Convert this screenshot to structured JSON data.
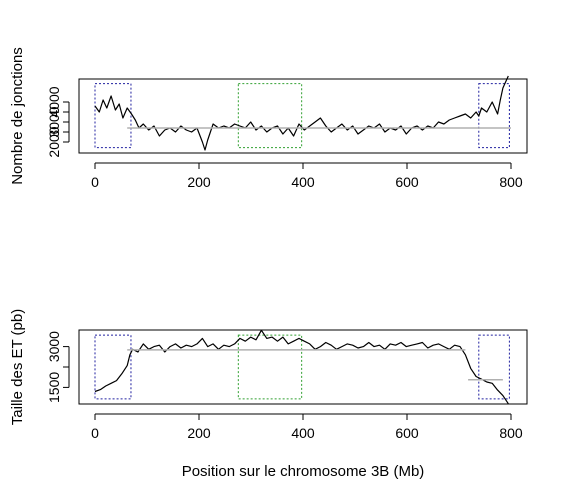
{
  "figure": {
    "xlabel": "Position sur le chromosome 3B (Mb)"
  },
  "colors": {
    "frame": "#000000",
    "signal": "#000000",
    "mean": "#b0b0b0",
    "box_blue": "#2020a0",
    "box_green": "#30a030"
  },
  "chart_data": [
    {
      "type": "line",
      "title": "",
      "xlabel": "",
      "ylabel": "Nombre de jonctions",
      "xlim": [
        0,
        775
      ],
      "ylim": [
        1600,
        5000
      ],
      "xticks": [
        0,
        200,
        400,
        600,
        800
      ],
      "yticks": [
        2000,
        3000,
        4000
      ],
      "ytick_labels": [
        "2000",
        "3000",
        "4000"
      ],
      "grid": false,
      "series": [
        {
          "x": [
            0,
            8,
            15,
            22,
            30,
            38,
            45,
            52,
            60,
            68,
            75,
            82,
            90,
            100,
            110,
            120,
            130,
            140,
            150,
            160,
            170,
            180,
            190,
            200,
            205,
            210,
            215,
            220,
            230,
            240,
            250,
            260,
            270,
            280,
            290,
            300,
            310,
            320,
            330,
            340,
            350,
            360,
            370,
            380,
            390,
            400,
            410,
            420,
            430,
            440,
            450,
            460,
            470,
            480,
            490,
            500,
            510,
            520,
            530,
            540,
            550,
            560,
            570,
            580,
            590,
            600,
            610,
            620,
            630,
            640,
            650,
            660,
            670,
            680,
            690,
            700,
            710,
            715,
            720,
            730,
            740,
            750,
            755,
            760,
            765,
            770
          ],
          "y": [
            3800,
            3500,
            4100,
            3700,
            4300,
            3600,
            3900,
            3200,
            3700,
            3400,
            3100,
            2700,
            2900,
            2600,
            2800,
            2300,
            2600,
            2700,
            2500,
            2800,
            2600,
            2500,
            2700,
            2000,
            1600,
            2100,
            2500,
            2900,
            2700,
            2800,
            2700,
            2900,
            2800,
            2700,
            3000,
            2600,
            2800,
            2500,
            2700,
            2800,
            2400,
            2700,
            2300,
            2900,
            2600,
            2800,
            3000,
            3200,
            2800,
            2500,
            2700,
            2900,
            2600,
            2800,
            2400,
            2600,
            2800,
            2700,
            2900,
            2500,
            2700,
            2600,
            2800,
            2400,
            2700,
            2800,
            2600,
            2800,
            2700,
            3000,
            2900,
            3100,
            3200,
            3300,
            3400,
            3200,
            3500,
            3300,
            3700,
            3500,
            4000,
            3400,
            4100,
            4700,
            5000,
            5300
          ]
        },
        {
          "name": "",
          "x": [
            60,
            775
          ],
          "y": [
            2700,
            2700
          ]
        }
      ],
      "boxes": [
        {
          "color": "blue",
          "x": [
            0,
            67
          ],
          "y": [
            1720,
            4920
          ]
        },
        {
          "color": "green",
          "x": [
            267,
            385
          ],
          "y": [
            1720,
            4920
          ]
        },
        {
          "color": "blue",
          "x": [
            715,
            772
          ],
          "y": [
            1720,
            4920
          ]
        }
      ]
    },
    {
      "type": "line",
      "title": "",
      "xlabel": "",
      "ylabel": "Taille des ET (pb)",
      "xlim": [
        0,
        775
      ],
      "ylim": [
        1000,
        3500
      ],
      "xticks": [
        0,
        200,
        400,
        600,
        800
      ],
      "yticks": [
        1500,
        3000
      ],
      "ytick_labels": [
        "1500",
        "3000"
      ],
      "grid": false,
      "series": [
        {
          "x": [
            0,
            10,
            20,
            30,
            40,
            50,
            60,
            65,
            70,
            80,
            90,
            100,
            110,
            120,
            130,
            140,
            150,
            160,
            170,
            180,
            190,
            200,
            210,
            220,
            230,
            240,
            250,
            260,
            270,
            280,
            290,
            300,
            310,
            320,
            330,
            340,
            350,
            360,
            370,
            380,
            390,
            400,
            410,
            420,
            430,
            440,
            450,
            460,
            470,
            480,
            490,
            500,
            510,
            520,
            530,
            540,
            550,
            560,
            570,
            580,
            590,
            600,
            610,
            620,
            630,
            640,
            650,
            660,
            670,
            680,
            690,
            700,
            710,
            720,
            730,
            740,
            750,
            760,
            770
          ],
          "y": [
            1350,
            1420,
            1550,
            1650,
            1750,
            2000,
            2300,
            2700,
            2900,
            2800,
            3100,
            2900,
            3000,
            3050,
            2800,
            3000,
            3100,
            2950,
            3050,
            3000,
            3100,
            3300,
            3000,
            3100,
            2900,
            3050,
            3000,
            3100,
            3300,
            3200,
            3350,
            3250,
            3600,
            3300,
            3350,
            3200,
            3350,
            3100,
            3200,
            3300,
            3200,
            3100,
            2900,
            3000,
            3150,
            3050,
            2900,
            3000,
            3100,
            3050,
            2950,
            3000,
            3150,
            3000,
            3050,
            2900,
            3100,
            3050,
            3150,
            3000,
            3050,
            3100,
            3150,
            2950,
            3050,
            3100,
            3000,
            2900,
            3050,
            3000,
            2700,
            2200,
            1900,
            1800,
            1700,
            1650,
            1400,
            1200,
            900
          ]
        },
        {
          "name": "",
          "x": [
            60,
            690
          ],
          "y": [
            2880,
            2880
          ]
        },
        {
          "name": "",
          "x": [
            695,
            760
          ],
          "y": [
            1780,
            1780
          ]
        }
      ],
      "boxes": [
        {
          "color": "blue",
          "x": [
            0,
            67
          ],
          "y": [
            1080,
            3420
          ]
        },
        {
          "color": "green",
          "x": [
            267,
            385
          ],
          "y": [
            1080,
            3420
          ]
        },
        {
          "color": "blue",
          "x": [
            715,
            772
          ],
          "y": [
            1080,
            3420
          ]
        }
      ]
    }
  ]
}
